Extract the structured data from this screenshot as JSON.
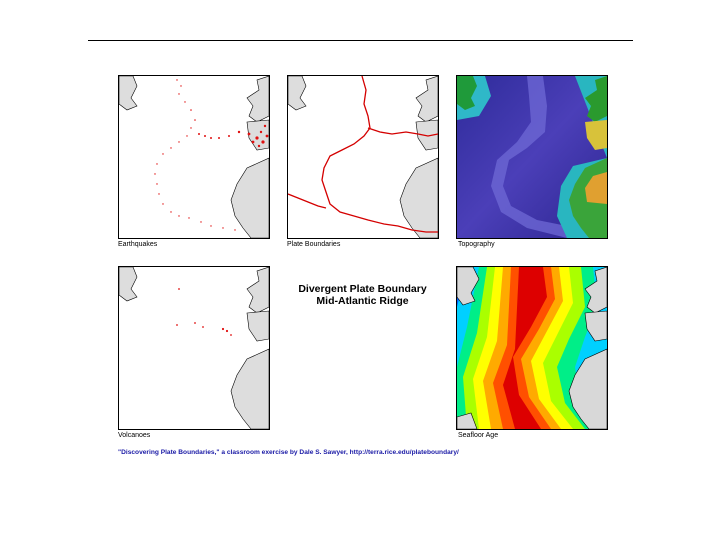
{
  "panels": {
    "earthquakes": {
      "caption": "Earthquakes"
    },
    "plate_boundaries": {
      "caption": "Plate Boundaries"
    },
    "topography": {
      "caption": "Topography"
    },
    "volcanoes": {
      "caption": "Volcanoes"
    },
    "seafloor_age": {
      "caption": "Seafloor Age"
    }
  },
  "title": {
    "line1": "Divergent Plate Boundary",
    "line2": "Mid-Atlantic Ridge"
  },
  "credit": "\"Discovering Plate Boundaries,\" a classroom exercise by Dale S. Sawyer, http://terra.rice.edu/plateboundary/",
  "colors": {
    "land": "#d8d8d8",
    "boundary": "#d40000",
    "ocean_topo": "#3a2fa0",
    "title_text": "#000000",
    "credit_text": "#1a1aa6"
  }
}
